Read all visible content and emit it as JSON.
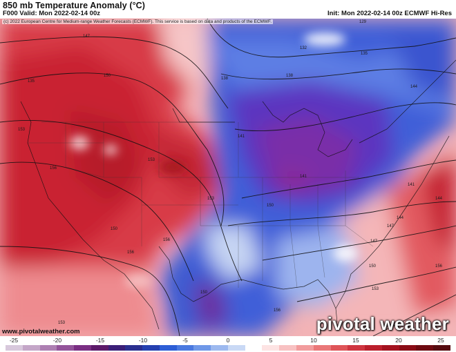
{
  "header": {
    "title": "850 mb Temperature Anomaly (°C)",
    "valid": "F000 Valid: Mon 2022-02-14 00z",
    "init": "Init: Mon 2022-02-14 00z ECMWF Hi-Res"
  },
  "map": {
    "copyright": "(c) 2022 European Centre for Medium-range Weather Forecasts (ECMWF). This service is based on data and products of the ECMWF.",
    "website": "www.pivotalweather.com",
    "brand": "pivotal weather",
    "contour_labels": [
      "147",
      "150",
      "153",
      "156",
      "141",
      "138",
      "135",
      "132",
      "129",
      "144",
      "147",
      "150",
      "153",
      "156",
      "138",
      "141",
      "150",
      "153",
      "156",
      "141",
      "144",
      "147",
      "150",
      "153",
      "156",
      "135",
      "144",
      "150",
      "153",
      "156"
    ],
    "colors": {
      "very_warm": "#cc1f2c",
      "warm": "#ea6a6f",
      "neutral": "#ffffff",
      "cool": "#4a66d8",
      "very_cold": "#7a2ea8"
    }
  },
  "colorbar": {
    "tick_labels": [
      "-25",
      "-20",
      "-15",
      "-10",
      "-5",
      "0",
      "5",
      "10",
      "15",
      "20",
      "25"
    ],
    "colors": [
      "#d8c8dc",
      "#c4a6c8",
      "#ad7fb2",
      "#93549a",
      "#7a2e83",
      "#5c1a6a",
      "#3b1f78",
      "#2b2f90",
      "#2540b0",
      "#2d5ed6",
      "#4a79e0",
      "#6f98e8",
      "#9db9ef",
      "#c9d9f5",
      "#ffffff",
      "#fde3e3",
      "#f8c1c2",
      "#f29c9d",
      "#ea7778",
      "#df5458",
      "#cf3540",
      "#bb1f2c",
      "#a4121f",
      "#8a0c16",
      "#6e0a11",
      "#560b10"
    ]
  }
}
